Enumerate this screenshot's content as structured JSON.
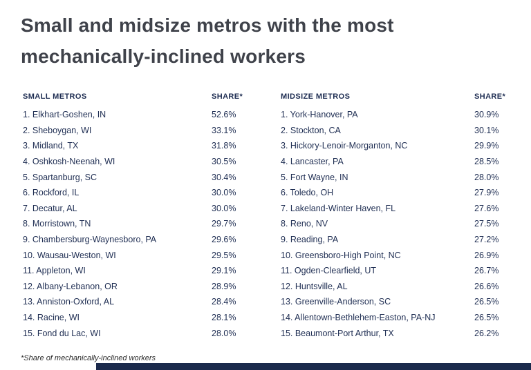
{
  "title": {
    "line1": "Small and midsize metros with the most",
    "line2": "mechanically-inclined workers"
  },
  "footnote": "*Share of mechanically-inclined workers",
  "colors": {
    "text_navy": "#1e2d52",
    "title_gray": "#3f424a",
    "footer_bar": "#1b2a4c"
  },
  "small_metros": {
    "header": "SMALL METROS",
    "share_header": "SHARE*",
    "rows": [
      {
        "label": "1. Elkhart-Goshen, IN",
        "share": "52.6%"
      },
      {
        "label": "2. Sheboygan, WI",
        "share": "33.1%"
      },
      {
        "label": "3. Midland, TX",
        "share": "31.8%"
      },
      {
        "label": "4. Oshkosh-Neenah, WI",
        "share": "30.5%"
      },
      {
        "label": "5. Spartanburg, SC",
        "share": "30.4%"
      },
      {
        "label": "6. Rockford, IL",
        "share": "30.0%"
      },
      {
        "label": "7. Decatur, AL",
        "share": "30.0%"
      },
      {
        "label": "8. Morristown, TN",
        "share": "29.7%"
      },
      {
        "label": "9. Chambersburg-Waynesboro, PA",
        "share": "29.6%"
      },
      {
        "label": "10. Wausau-Weston, WI",
        "share": "29.5%"
      },
      {
        "label": "11. Appleton, WI",
        "share": "29.1%"
      },
      {
        "label": "12. Albany-Lebanon, OR",
        "share": "28.9%"
      },
      {
        "label": "13. Anniston-Oxford, AL",
        "share": "28.4%"
      },
      {
        "label": "14. Racine, WI",
        "share": "28.1%"
      },
      {
        "label": "15. Fond du Lac, WI",
        "share": "28.0%"
      }
    ]
  },
  "midsize_metros": {
    "header": "MIDSIZE METROS",
    "share_header": "SHARE*",
    "rows": [
      {
        "label": "1. York-Hanover, PA",
        "share": "30.9%"
      },
      {
        "label": "2. Stockton, CA",
        "share": "30.1%"
      },
      {
        "label": "3. Hickory-Lenoir-Morganton, NC",
        "share": "29.9%"
      },
      {
        "label": "4. Lancaster, PA",
        "share": "28.5%"
      },
      {
        "label": "5. Fort Wayne, IN",
        "share": "28.0%"
      },
      {
        "label": "6. Toledo, OH",
        "share": "27.9%"
      },
      {
        "label": "7. Lakeland-Winter Haven, FL",
        "share": "27.6%"
      },
      {
        "label": "8. Reno, NV",
        "share": "27.5%"
      },
      {
        "label": "9. Reading, PA",
        "share": "27.2%"
      },
      {
        "label": "10. Greensboro-High Point, NC",
        "share": "26.9%"
      },
      {
        "label": "11. Ogden-Clearfield, UT",
        "share": "26.7%"
      },
      {
        "label": "12. Huntsville, AL",
        "share": "26.6%"
      },
      {
        "label": "13. Greenville-Anderson, SC",
        "share": "26.5%"
      },
      {
        "label": "14. Allentown-Bethlehem-Easton, PA-NJ",
        "share": "26.5%"
      },
      {
        "label": "15. Beaumont-Port Arthur, TX",
        "share": "26.2%"
      }
    ]
  },
  "chart_data": [
    {
      "type": "table",
      "title": "Small and midsize metros with the most mechanically-inclined workers",
      "subtitle": "*Share of mechanically-inclined workers",
      "columns": [
        "SMALL METROS",
        "SHARE*"
      ],
      "rows": [
        [
          "Elkhart-Goshen, IN",
          52.6
        ],
        [
          "Sheboygan, WI",
          33.1
        ],
        [
          "Midland, TX",
          31.8
        ],
        [
          "Oshkosh-Neenah, WI",
          30.5
        ],
        [
          "Spartanburg, SC",
          30.4
        ],
        [
          "Rockford, IL",
          30.0
        ],
        [
          "Decatur, AL",
          30.0
        ],
        [
          "Morristown, TN",
          29.7
        ],
        [
          "Chambersburg-Waynesboro, PA",
          29.6
        ],
        [
          "Wausau-Weston, WI",
          29.5
        ],
        [
          "Appleton, WI",
          29.1
        ],
        [
          "Albany-Lebanon, OR",
          28.9
        ],
        [
          "Anniston-Oxford, AL",
          28.4
        ],
        [
          "Racine, WI",
          28.1
        ],
        [
          "Fond du Lac, WI",
          28.0
        ]
      ]
    },
    {
      "type": "table",
      "title": "Small and midsize metros with the most mechanically-inclined workers",
      "subtitle": "*Share of mechanically-inclined workers",
      "columns": [
        "MIDSIZE METROS",
        "SHARE*"
      ],
      "rows": [
        [
          "York-Hanover, PA",
          30.9
        ],
        [
          "Stockton, CA",
          30.1
        ],
        [
          "Hickory-Lenoir-Morganton, NC",
          29.9
        ],
        [
          "Lancaster, PA",
          28.5
        ],
        [
          "Fort Wayne, IN",
          28.0
        ],
        [
          "Toledo, OH",
          27.9
        ],
        [
          "Lakeland-Winter Haven, FL",
          27.6
        ],
        [
          "Reno, NV",
          27.5
        ],
        [
          "Reading, PA",
          27.2
        ],
        [
          "Greensboro-High Point, NC",
          26.9
        ],
        [
          "Ogden-Clearfield, UT",
          26.7
        ],
        [
          "Huntsville, AL",
          26.6
        ],
        [
          "Greenville-Anderson, SC",
          26.5
        ],
        [
          "Allentown-Bethlehem-Easton, PA-NJ",
          26.5
        ],
        [
          "Beaumont-Port Arthur, TX",
          26.2
        ]
      ]
    }
  ]
}
